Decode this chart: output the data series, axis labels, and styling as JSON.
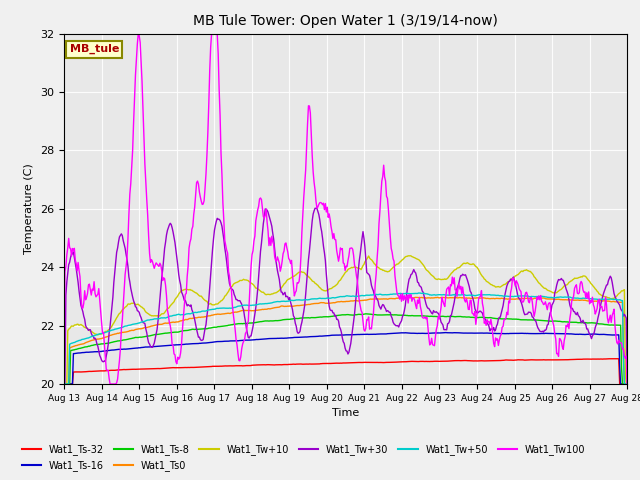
{
  "title": "MB Tule Tower: Open Water 1 (3/19/14-now)",
  "xlabel": "Time",
  "ylabel": "Temperature (C)",
  "ylim": [
    20,
    32
  ],
  "series_colors": {
    "Wat1_Ts-32": "#ff0000",
    "Wat1_Ts-16": "#0000cc",
    "Wat1_Ts-8": "#00cc00",
    "Wat1_Ts0": "#ff8800",
    "Wat1_Tw+10": "#cccc00",
    "Wat1_Tw+30": "#9900cc",
    "Wat1_Tw+50": "#00cccc",
    "Wat1_Tw100": "#ff00ff"
  },
  "xtick_labels": [
    "Aug 13",
    "Aug 14",
    "Aug 15",
    "Aug 16",
    "Aug 17",
    "Aug 18",
    "Aug 19",
    "Aug 20",
    "Aug 21",
    "Aug 22",
    "Aug 23",
    "Aug 24",
    "Aug 25",
    "Aug 26",
    "Aug 27",
    "Aug 28"
  ],
  "ytick_labels": [
    20,
    22,
    24,
    26,
    28,
    30,
    32
  ],
  "station_label": "MB_tule",
  "station_label_color": "#aa0000",
  "station_box_facecolor": "#ffffcc",
  "station_box_edgecolor": "#888800",
  "fig_facecolor": "#f0f0f0",
  "ax_facecolor": "#e8e8e8"
}
